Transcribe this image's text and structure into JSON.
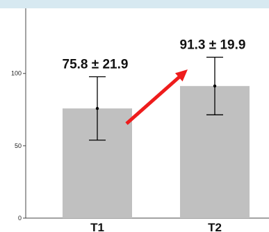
{
  "chart_data": {
    "type": "bar",
    "categories": [
      "T1",
      "T2"
    ],
    "values": [
      75.8,
      91.3
    ],
    "errors": [
      21.9,
      19.9
    ],
    "annotations": [
      "75.8 ± 21.9",
      "91.3 ± 19.9"
    ],
    "yticks": [
      0,
      50,
      100
    ],
    "ylim": [
      0,
      145
    ],
    "title": "",
    "xlabel": "",
    "ylabel": "",
    "grid": false,
    "arrow": {
      "from": "T1",
      "to": "T2"
    },
    "colors": {
      "bar": "#c0c0c0",
      "arrow": "#ee1c1c",
      "errorbar": "#000000",
      "background": "#d7e9f1"
    }
  }
}
